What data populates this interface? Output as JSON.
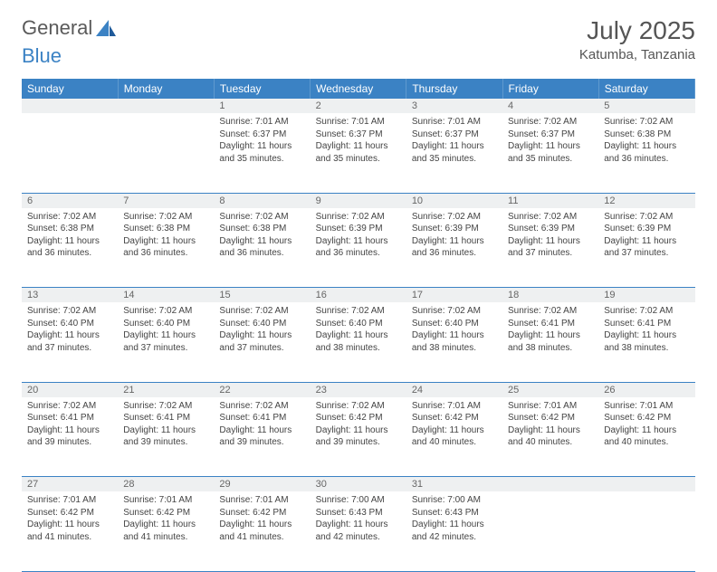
{
  "logo": {
    "text_general": "General",
    "text_blue": "Blue"
  },
  "header": {
    "month_title": "July 2025",
    "location": "Katumba, Tanzania"
  },
  "colors": {
    "header_bg": "#3b82c4",
    "header_fg": "#ffffff",
    "daynum_bg": "#eef0f1",
    "border": "#3b82c4",
    "text": "#444444"
  },
  "day_headers": [
    "Sunday",
    "Monday",
    "Tuesday",
    "Wednesday",
    "Thursday",
    "Friday",
    "Saturday"
  ],
  "weeks": [
    {
      "nums": [
        "",
        "",
        "1",
        "2",
        "3",
        "4",
        "5"
      ],
      "cells": [
        null,
        null,
        {
          "sunrise": "7:01 AM",
          "sunset": "6:37 PM",
          "daylight": "11 hours and 35 minutes."
        },
        {
          "sunrise": "7:01 AM",
          "sunset": "6:37 PM",
          "daylight": "11 hours and 35 minutes."
        },
        {
          "sunrise": "7:01 AM",
          "sunset": "6:37 PM",
          "daylight": "11 hours and 35 minutes."
        },
        {
          "sunrise": "7:02 AM",
          "sunset": "6:37 PM",
          "daylight": "11 hours and 35 minutes."
        },
        {
          "sunrise": "7:02 AM",
          "sunset": "6:38 PM",
          "daylight": "11 hours and 36 minutes."
        }
      ]
    },
    {
      "nums": [
        "6",
        "7",
        "8",
        "9",
        "10",
        "11",
        "12"
      ],
      "cells": [
        {
          "sunrise": "7:02 AM",
          "sunset": "6:38 PM",
          "daylight": "11 hours and 36 minutes."
        },
        {
          "sunrise": "7:02 AM",
          "sunset": "6:38 PM",
          "daylight": "11 hours and 36 minutes."
        },
        {
          "sunrise": "7:02 AM",
          "sunset": "6:38 PM",
          "daylight": "11 hours and 36 minutes."
        },
        {
          "sunrise": "7:02 AM",
          "sunset": "6:39 PM",
          "daylight": "11 hours and 36 minutes."
        },
        {
          "sunrise": "7:02 AM",
          "sunset": "6:39 PM",
          "daylight": "11 hours and 36 minutes."
        },
        {
          "sunrise": "7:02 AM",
          "sunset": "6:39 PM",
          "daylight": "11 hours and 37 minutes."
        },
        {
          "sunrise": "7:02 AM",
          "sunset": "6:39 PM",
          "daylight": "11 hours and 37 minutes."
        }
      ]
    },
    {
      "nums": [
        "13",
        "14",
        "15",
        "16",
        "17",
        "18",
        "19"
      ],
      "cells": [
        {
          "sunrise": "7:02 AM",
          "sunset": "6:40 PM",
          "daylight": "11 hours and 37 minutes."
        },
        {
          "sunrise": "7:02 AM",
          "sunset": "6:40 PM",
          "daylight": "11 hours and 37 minutes."
        },
        {
          "sunrise": "7:02 AM",
          "sunset": "6:40 PM",
          "daylight": "11 hours and 37 minutes."
        },
        {
          "sunrise": "7:02 AM",
          "sunset": "6:40 PM",
          "daylight": "11 hours and 38 minutes."
        },
        {
          "sunrise": "7:02 AM",
          "sunset": "6:40 PM",
          "daylight": "11 hours and 38 minutes."
        },
        {
          "sunrise": "7:02 AM",
          "sunset": "6:41 PM",
          "daylight": "11 hours and 38 minutes."
        },
        {
          "sunrise": "7:02 AM",
          "sunset": "6:41 PM",
          "daylight": "11 hours and 38 minutes."
        }
      ]
    },
    {
      "nums": [
        "20",
        "21",
        "22",
        "23",
        "24",
        "25",
        "26"
      ],
      "cells": [
        {
          "sunrise": "7:02 AM",
          "sunset": "6:41 PM",
          "daylight": "11 hours and 39 minutes."
        },
        {
          "sunrise": "7:02 AM",
          "sunset": "6:41 PM",
          "daylight": "11 hours and 39 minutes."
        },
        {
          "sunrise": "7:02 AM",
          "sunset": "6:41 PM",
          "daylight": "11 hours and 39 minutes."
        },
        {
          "sunrise": "7:02 AM",
          "sunset": "6:42 PM",
          "daylight": "11 hours and 39 minutes."
        },
        {
          "sunrise": "7:01 AM",
          "sunset": "6:42 PM",
          "daylight": "11 hours and 40 minutes."
        },
        {
          "sunrise": "7:01 AM",
          "sunset": "6:42 PM",
          "daylight": "11 hours and 40 minutes."
        },
        {
          "sunrise": "7:01 AM",
          "sunset": "6:42 PM",
          "daylight": "11 hours and 40 minutes."
        }
      ]
    },
    {
      "nums": [
        "27",
        "28",
        "29",
        "30",
        "31",
        "",
        ""
      ],
      "cells": [
        {
          "sunrise": "7:01 AM",
          "sunset": "6:42 PM",
          "daylight": "11 hours and 41 minutes."
        },
        {
          "sunrise": "7:01 AM",
          "sunset": "6:42 PM",
          "daylight": "11 hours and 41 minutes."
        },
        {
          "sunrise": "7:01 AM",
          "sunset": "6:42 PM",
          "daylight": "11 hours and 41 minutes."
        },
        {
          "sunrise": "7:00 AM",
          "sunset": "6:43 PM",
          "daylight": "11 hours and 42 minutes."
        },
        {
          "sunrise": "7:00 AM",
          "sunset": "6:43 PM",
          "daylight": "11 hours and 42 minutes."
        },
        null,
        null
      ]
    }
  ],
  "labels": {
    "sunrise": "Sunrise:",
    "sunset": "Sunset:",
    "daylight": "Daylight:"
  }
}
